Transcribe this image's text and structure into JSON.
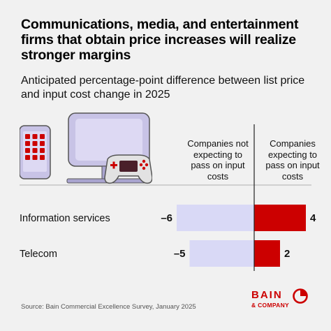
{
  "title": "Communications, media, and entertainment firms that obtain price increases will realize stronger margins",
  "subtitle": "Anticipated percentage-point difference between list price and input cost change in 2025",
  "column_headers": {
    "left": "Companies not expecting to pass on input costs",
    "right": "Companies expecting to pass on input costs"
  },
  "source": "Source: Bain Commercial Excellence Survey, January 2025",
  "logo": {
    "line1": "BAIN",
    "line2": "& COMPANY"
  },
  "colors": {
    "negative_bar": "#d9d9f6",
    "positive_bar": "#cc0000",
    "axis": "#222222",
    "background": "#f1f1f1"
  },
  "chart_data": {
    "type": "bar",
    "orientation": "horizontal",
    "categories": [
      "Information services",
      "Telecom"
    ],
    "series": [
      {
        "name": "Companies not expecting to pass on input costs",
        "values": [
          -6,
          -5
        ],
        "labels": [
          "–6",
          "–5"
        ]
      },
      {
        "name": "Companies expecting to pass on input costs",
        "values": [
          4,
          2
        ],
        "labels": [
          "4",
          "2"
        ]
      }
    ],
    "xlim": [
      -7,
      5
    ]
  }
}
